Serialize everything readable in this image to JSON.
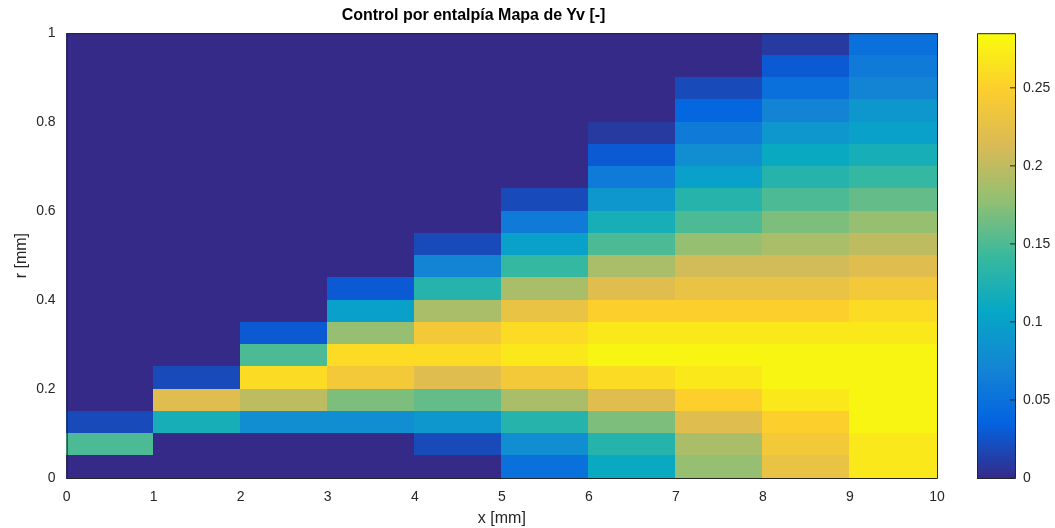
{
  "chart_data": {
    "type": "heatmap",
    "title": "Control por entalpía Mapa de Yv [-]",
    "xlabel": "x [mm]",
    "ylabel": "r [mm]",
    "x": [
      0.5,
      1.5,
      2.5,
      3.5,
      4.5,
      5.5,
      6.5,
      7.5,
      8.5,
      9.5
    ],
    "y": [
      0.975,
      0.925,
      0.875,
      0.825,
      0.775,
      0.725,
      0.675,
      0.625,
      0.575,
      0.525,
      0.475,
      0.425,
      0.375,
      0.325,
      0.275,
      0.225,
      0.175,
      0.125,
      0.075,
      0.025
    ],
    "cells": [
      [
        0,
        0,
        0,
        0,
        0,
        0,
        0,
        0,
        0.01,
        0.05
      ],
      [
        0,
        0,
        0,
        0,
        0,
        0,
        0,
        0,
        0.03,
        0.06
      ],
      [
        0,
        0,
        0,
        0,
        0,
        0,
        0,
        0.02,
        0.05,
        0.07
      ],
      [
        0,
        0,
        0,
        0,
        0,
        0,
        0,
        0.04,
        0.07,
        0.09
      ],
      [
        0,
        0,
        0,
        0,
        0,
        0,
        0.01,
        0.06,
        0.09,
        0.1
      ],
      [
        0,
        0,
        0,
        0,
        0,
        0,
        0.03,
        0.08,
        0.11,
        0.12
      ],
      [
        0,
        0,
        0,
        0,
        0,
        0,
        0.06,
        0.1,
        0.13,
        0.14
      ],
      [
        0,
        0,
        0,
        0,
        0,
        0.02,
        0.09,
        0.13,
        0.15,
        0.16
      ],
      [
        0,
        0,
        0,
        0,
        0,
        0.06,
        0.12,
        0.15,
        0.17,
        0.18
      ],
      [
        0,
        0,
        0,
        0,
        0.02,
        0.1,
        0.15,
        0.18,
        0.19,
        0.2
      ],
      [
        0,
        0,
        0,
        0,
        0.07,
        0.14,
        0.19,
        0.21,
        0.21,
        0.22
      ],
      [
        0,
        0,
        0,
        0.03,
        0.13,
        0.19,
        0.22,
        0.23,
        0.23,
        0.24
      ],
      [
        0,
        0,
        0,
        0.1,
        0.19,
        0.23,
        0.25,
        0.25,
        0.25,
        0.26
      ],
      [
        0,
        0,
        0.03,
        0.18,
        0.24,
        0.26,
        0.27,
        0.27,
        0.27,
        0.27
      ],
      [
        0,
        0,
        0.15,
        0.26,
        0.26,
        0.27,
        0.28,
        0.28,
        0.28,
        0.28
      ],
      [
        0,
        0.02,
        0.26,
        0.24,
        0.22,
        0.24,
        0.26,
        0.27,
        0.28,
        0.28
      ],
      [
        0,
        0.22,
        0.2,
        0.17,
        0.16,
        0.19,
        0.22,
        0.25,
        0.27,
        0.28
      ],
      [
        0.02,
        0.12,
        0.08,
        0.08,
        0.09,
        0.13,
        0.17,
        0.22,
        0.25,
        0.28
      ],
      [
        0.15,
        0,
        0,
        0,
        0.02,
        0.08,
        0.13,
        0.19,
        0.24,
        0.27
      ],
      [
        0,
        0,
        0,
        0,
        0,
        0.05,
        0.11,
        0.18,
        0.23,
        0.27
      ]
    ],
    "clim": [
      0,
      0.285
    ],
    "cticks": [
      0,
      0.05,
      0.1,
      0.15,
      0.2,
      0.25
    ],
    "xlim": [
      0,
      10
    ],
    "xticks": [
      0,
      1,
      2,
      3,
      4,
      5,
      6,
      7,
      8,
      9,
      10
    ],
    "ylim": [
      0,
      1
    ],
    "yticks": [
      0,
      0.2,
      0.4,
      0.6,
      0.8,
      1
    ]
  }
}
